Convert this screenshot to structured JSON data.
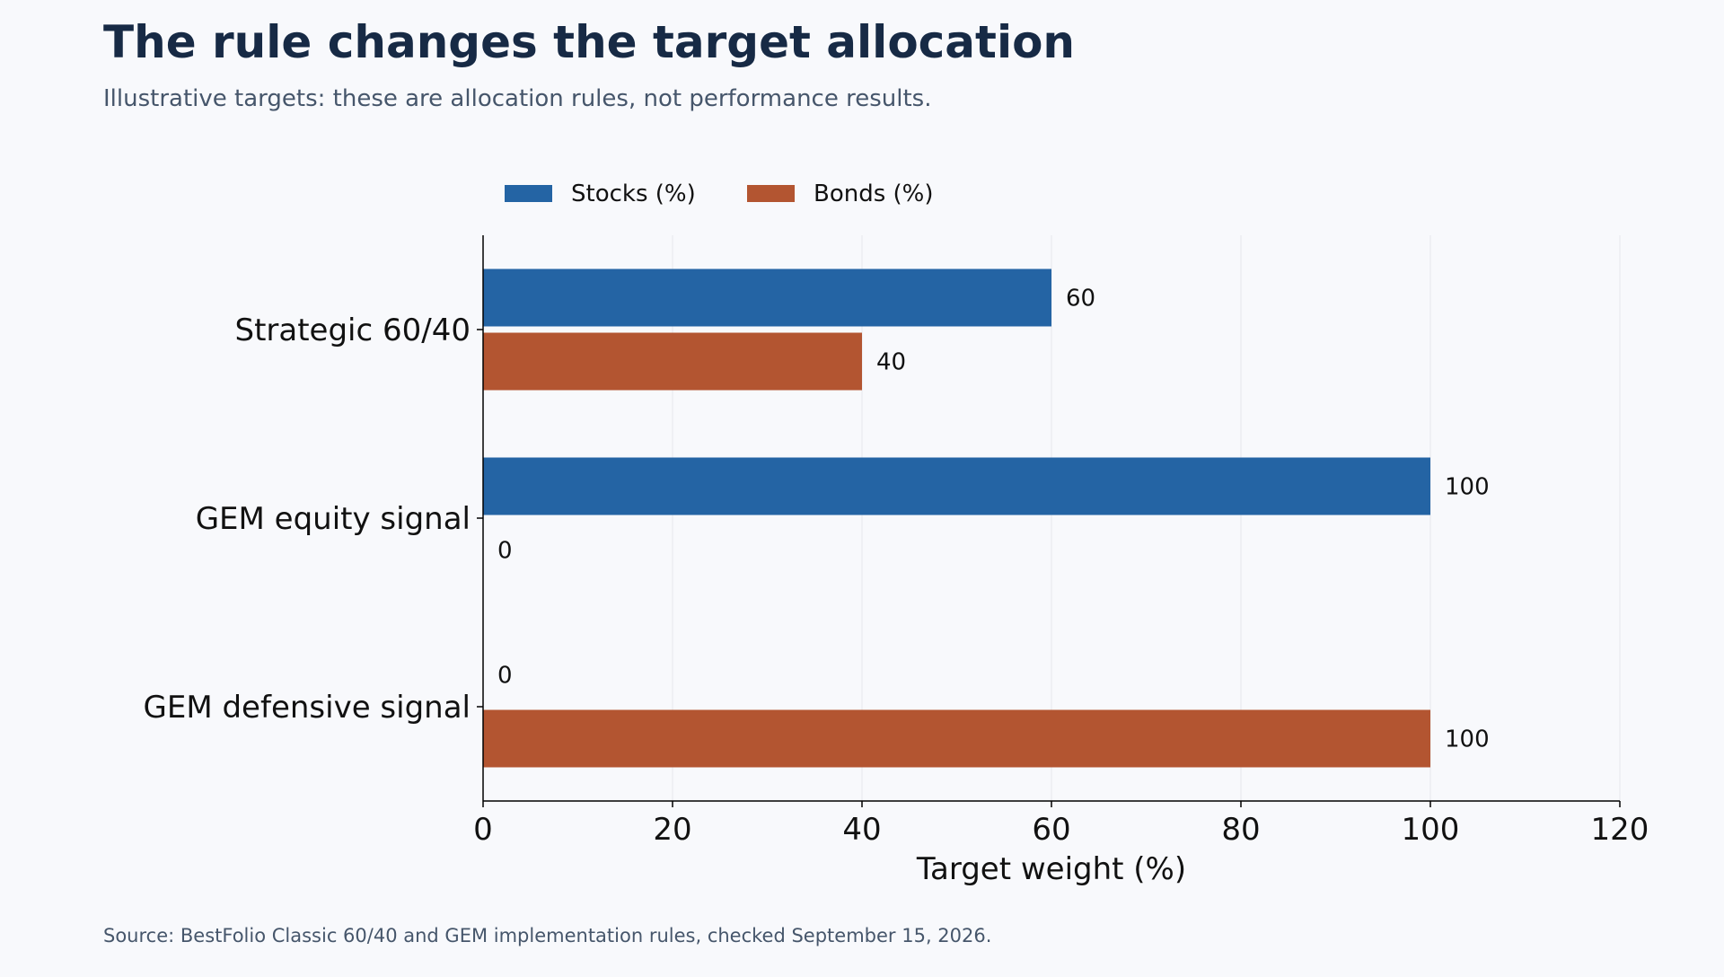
{
  "header": {
    "title": "The rule changes the target allocation",
    "subtitle": "Illustrative targets: these are allocation rules, not performance results."
  },
  "footer": {
    "source": "Source: BestFolio Classic 60/40 and GEM implementation rules, checked September 15, 2026."
  },
  "chart_data": {
    "type": "bar",
    "orientation": "horizontal",
    "categories": [
      "Strategic 60/40",
      "GEM equity signal",
      "GEM defensive signal"
    ],
    "series": [
      {
        "name": "Stocks (%)",
        "values": [
          60,
          100,
          0
        ],
        "color": "#2464a4"
      },
      {
        "name": "Bonds (%)",
        "values": [
          40,
          0,
          100
        ],
        "color": "#b35531"
      }
    ],
    "xlabel": "Target weight (%)",
    "ylabel": "",
    "xlim": [
      0,
      120
    ],
    "xticks": [
      0,
      20,
      40,
      60,
      80,
      100,
      120
    ],
    "grid": "vertical",
    "legend_position": "top",
    "data_labels": true
  }
}
